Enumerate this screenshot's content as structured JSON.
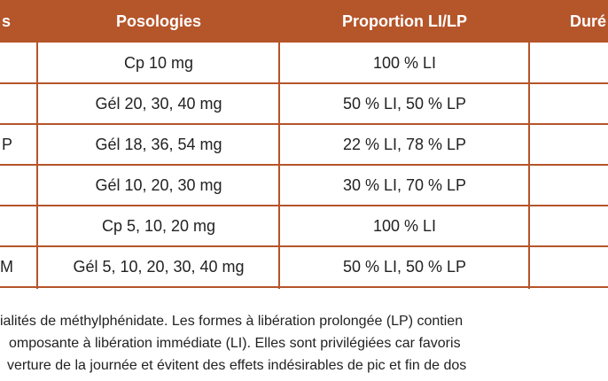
{
  "table": {
    "header": {
      "col1": "s",
      "posologies": "Posologies",
      "proportion": "Proportion LI/LP",
      "col4": "Duré"
    },
    "rows": [
      {
        "posologies": "Cp 10 mg",
        "proportion": "100 % LI"
      },
      {
        "posologies": "Gél 20, 30, 40 mg",
        "proportion": "50 % LI, 50 % LP"
      },
      {
        "col1": "P",
        "posologies": "Gél 18, 36, 54 mg",
        "proportion": "22 % LI, 78 % LP"
      },
      {
        "posologies": "Gél 10, 20, 30 mg",
        "proportion": "30 % LI, 70 % LP"
      },
      {
        "posologies": "Cp 5, 10, 20 mg",
        "proportion": "100 % LI"
      },
      {
        "col1": "M",
        "posologies": "Gél 5, 10, 20, 30, 40 mg",
        "proportion": "50 % LI, 50 % LP"
      }
    ]
  },
  "caption": {
    "lines": [
      "ialités de méthylphénidate. Les formes à libération prolongée (LP) contien",
      "omposante à libération immédiate (LI). Elles sont privilégiées car favoris",
      "verture de la journée et évitent des effets indésirables de pic et fin de dos"
    ]
  }
}
